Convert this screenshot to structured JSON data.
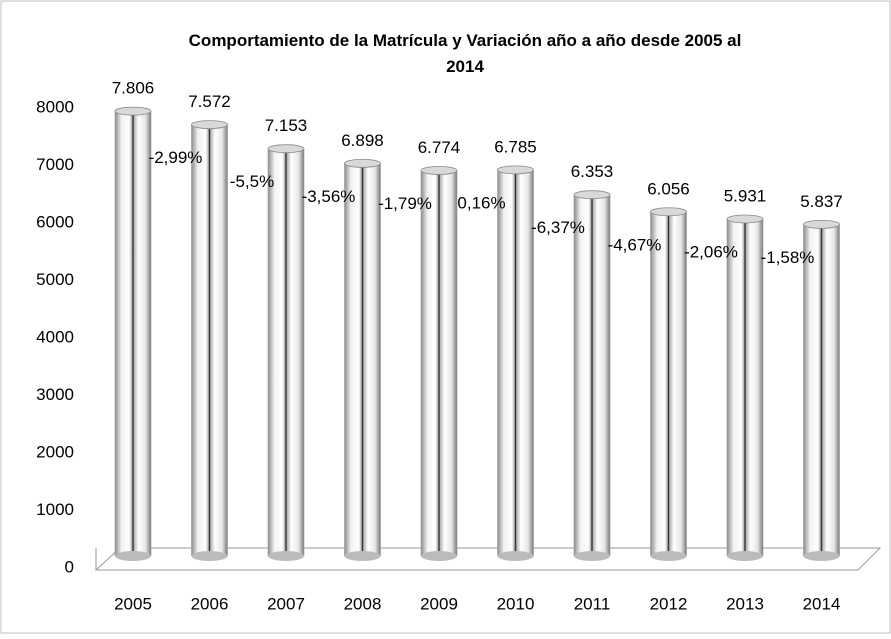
{
  "chart_data": {
    "type": "bar",
    "title": "Comportamiento de la Matrícula y Variación año a año desde 2005 al 2014",
    "categories": [
      "2005",
      "2006",
      "2007",
      "2008",
      "2009",
      "2010",
      "2011",
      "2012",
      "2013",
      "2014"
    ],
    "values": [
      7806,
      7572,
      7153,
      6898,
      6774,
      6785,
      6353,
      6056,
      5931,
      5837
    ],
    "value_labels": [
      "7.806",
      "7.572",
      "7.153",
      "6.898",
      "6.774",
      "6.785",
      "6.353",
      "6.056",
      "5.931",
      "5.837"
    ],
    "annotations": [
      null,
      "-2,99%",
      "-5,5%",
      "-3,56%",
      "-1,79%",
      "0,16%",
      "-6,37%",
      "-4,67%",
      "-2,06%",
      "-1,58%"
    ],
    "color": "#d9d9d9",
    "ylim": [
      0,
      8000
    ],
    "yticks": [
      0,
      1000,
      2000,
      3000,
      4000,
      5000,
      6000,
      7000,
      8000
    ],
    "grid": false
  }
}
